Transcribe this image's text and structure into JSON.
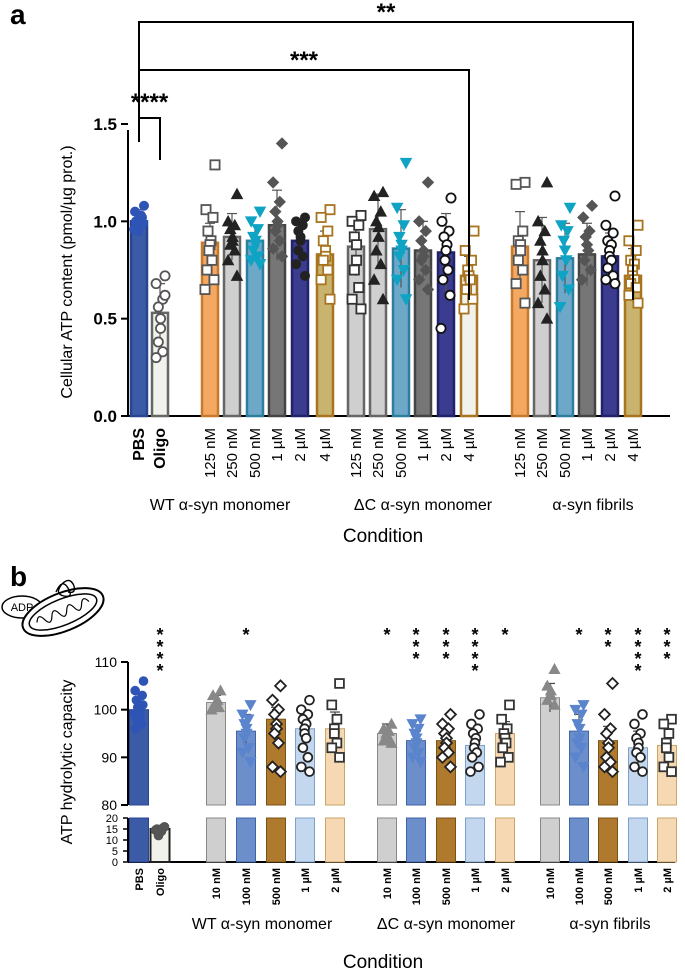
{
  "colors": {
    "pbs": "#3B5BA7",
    "oligo": "#F2F2EC",
    "orange": "#F5A862",
    "lightgray": "#CFCFCF",
    "teal": "#6EA8C9",
    "darkgray": "#767676",
    "navy": "#3B3B8F",
    "olive": "#C8B46E",
    "brown": "#B07A2E",
    "midblue": "#6C8FCB",
    "paleblue": "#C3D7EE",
    "peach": "#F6D9B3",
    "cyanmarker": "#0FA3C4",
    "brownmarker": "#A8741F"
  },
  "panel_a": {
    "panel_label": "a",
    "xlabel": "Condition",
    "ylabel": "Cellular ATP content (pmol/µg prot.)",
    "ytick_labels": [
      "0.0",
      "0.5",
      "1.0",
      "1.5"
    ],
    "group_labels": [
      "WT α-syn monomer",
      "ΔC α-syn monomer",
      "α-syn fibrils"
    ],
    "brackets": [
      {
        "from": "PBS",
        "to": "Oligo",
        "label": "****"
      },
      {
        "from": "PBS",
        "to": "ΔC 4 µM",
        "label": "***"
      },
      {
        "from": "PBS",
        "to": "Fibrils 4 µM",
        "label": "**"
      }
    ]
  },
  "panel_b": {
    "panel_label": "b",
    "icon_text": "ADP",
    "xlabel": "Condition",
    "ylabel": "ATP hydrolytic capacity",
    "ytick_labels_upper": [
      "80",
      "90",
      "100",
      "110"
    ],
    "ytick_labels_lower": [
      "0",
      "5",
      "10",
      "15",
      "20"
    ],
    "group_labels": [
      "WT α-syn monomer",
      "ΔC α-syn monomer",
      "α-syn fibrils"
    ]
  },
  "chart_data": [
    {
      "type": "bar",
      "title": "",
      "xlabel": "Condition",
      "ylabel": "Cellular ATP content (pmol/µg prot.)",
      "ylim": [
        0,
        1.5
      ],
      "categories": [
        "PBS",
        "Oligo",
        "125 nM",
        "250 nM",
        "500 nM",
        "1 µM",
        "2 µM",
        "4 µM",
        "125 nM",
        "250 nM",
        "500 nM",
        "1 µM",
        "2 µM",
        "4 µM",
        "125 nM",
        "250 nM",
        "500 nM",
        "1 µM",
        "2 µM",
        "4 µM"
      ],
      "groups": [
        "",
        "",
        "WT α-syn monomer",
        "WT α-syn monomer",
        "WT α-syn monomer",
        "WT α-syn monomer",
        "WT α-syn monomer",
        "WT α-syn monomer",
        "ΔC α-syn monomer",
        "ΔC α-syn monomer",
        "ΔC α-syn monomer",
        "ΔC α-syn monomer",
        "ΔC α-syn monomer",
        "ΔC α-syn monomer",
        "α-syn fibrils",
        "α-syn fibrils",
        "α-syn fibrils",
        "α-syn fibrils",
        "α-syn fibrils",
        "α-syn fibrils"
      ],
      "values": [
        1.0,
        0.53,
        0.89,
        0.92,
        0.9,
        0.98,
        0.9,
        0.83,
        0.87,
        0.96,
        0.86,
        0.85,
        0.84,
        0.72,
        0.87,
        0.8,
        0.81,
        0.83,
        0.82,
        0.72
      ],
      "errors": [
        0.06,
        0.15,
        0.1,
        0.12,
        0.08,
        0.18,
        0.1,
        0.12,
        0.15,
        0.18,
        0.2,
        0.15,
        0.2,
        0.1,
        0.18,
        0.22,
        0.18,
        0.16,
        0.12,
        0.14
      ],
      "fills": [
        "pbs",
        "oligo",
        "orange",
        "lightgray",
        "teal",
        "darkgray",
        "navy",
        "olive",
        "lightgray",
        "lightgray",
        "teal",
        "darkgray",
        "navy",
        "oligo",
        "orange",
        "lightgray",
        "teal",
        "darkgray",
        "navy",
        "olive"
      ],
      "outlines": [
        "#2A4590",
        "#666666",
        "#C77A2E",
        "#666666",
        "#2D7E9E",
        "#444444",
        "#22226A",
        "#A8741F",
        "#666666",
        "#666666",
        "#2D7E9E",
        "#444444",
        "#22226A",
        "#A8741F",
        "#C77A2E",
        "#666666",
        "#2D7E9E",
        "#444444",
        "#22226A",
        "#A8741F"
      ],
      "markers": [
        "filled-circle",
        "open-circle",
        "open-square",
        "filled-triangle",
        "filled-down-triangle",
        "filled-diamond",
        "filled-circle",
        "open-square",
        "open-square",
        "filled-triangle",
        "filled-down-triangle",
        "filled-diamond",
        "open-circle",
        "open-square",
        "open-square",
        "filled-triangle",
        "filled-down-triangle",
        "filled-diamond",
        "open-circle",
        "open-square"
      ],
      "marker_colors": [
        "#2E55B5",
        "#555555",
        "#555555",
        "#222222",
        "cyanmarker",
        "#555555",
        "#222222",
        "brownmarker",
        "#333333",
        "#222222",
        "cyanmarker",
        "#555555",
        "#111111",
        "brownmarker",
        "#555555",
        "#222222",
        "cyanmarker",
        "#555555",
        "#111111",
        "brownmarker"
      ],
      "points": [
        [
          1.08,
          1.05,
          1.02,
          1.0,
          0.98,
          0.97,
          0.95,
          1.03,
          1.0,
          0.99,
          0.96
        ],
        [
          0.72,
          0.68,
          0.6,
          0.56,
          0.5,
          0.45,
          0.38,
          0.33,
          0.3,
          0.62
        ],
        [
          1.29,
          1.06,
          1.02,
          0.95,
          0.9,
          0.88,
          0.85,
          0.8,
          0.75,
          0.7,
          0.65
        ],
        [
          1.14,
          1.0,
          0.98,
          0.96,
          0.92,
          0.9,
          0.88,
          0.85,
          0.8,
          0.72
        ],
        [
          1.05,
          1.0,
          0.96,
          0.92,
          0.9,
          0.88,
          0.85,
          0.82,
          0.8,
          0.78
        ],
        [
          1.4,
          1.2,
          1.1,
          1.05,
          1.0,
          0.98,
          0.95,
          0.9,
          0.86,
          0.82
        ],
        [
          1.02,
          1.0,
          0.98,
          0.95,
          0.92,
          0.9,
          0.85,
          0.82,
          0.78,
          0.72
        ],
        [
          1.06,
          1.02,
          0.95,
          0.9,
          0.85,
          0.82,
          0.8,
          0.75,
          0.7,
          0.6
        ],
        [
          1.03,
          1.0,
          0.98,
          0.92,
          0.88,
          0.8,
          0.75,
          0.66,
          0.6,
          0.55
        ],
        [
          1.15,
          1.13,
          1.05,
          1.0,
          0.97,
          0.92,
          0.85,
          0.78,
          0.7,
          0.6
        ],
        [
          1.3,
          1.07,
          0.98,
          0.92,
          0.88,
          0.85,
          0.82,
          0.75,
          0.7,
          0.6
        ],
        [
          1.2,
          1.0,
          0.95,
          0.9,
          0.85,
          0.82,
          0.8,
          0.75,
          0.7,
          0.65
        ],
        [
          1.12,
          1.0,
          0.95,
          0.92,
          0.88,
          0.85,
          0.8,
          0.75,
          0.7,
          0.62,
          0.45
        ],
        [
          0.95,
          0.85,
          0.8,
          0.75,
          0.72,
          0.7,
          0.65,
          0.6,
          0.55
        ],
        [
          1.2,
          1.19,
          0.95,
          0.9,
          0.88,
          0.85,
          0.8,
          0.75,
          0.68,
          0.58
        ],
        [
          1.2,
          1.0,
          0.95,
          0.9,
          0.85,
          0.8,
          0.72,
          0.65,
          0.58,
          0.5
        ],
        [
          1.07,
          0.98,
          0.95,
          0.9,
          0.85,
          0.8,
          0.72,
          0.65,
          0.56
        ],
        [
          1.08,
          1.02,
          0.95,
          0.92,
          0.88,
          0.85,
          0.8,
          0.75,
          0.7
        ],
        [
          1.13,
          0.98,
          0.94,
          0.9,
          0.88,
          0.85,
          0.82,
          0.8,
          0.76,
          0.72,
          0.7,
          0.68
        ],
        [
          0.98,
          0.9,
          0.85,
          0.8,
          0.78,
          0.75,
          0.72,
          0.7,
          0.68,
          0.66,
          0.62,
          0.58
        ]
      ]
    },
    {
      "type": "bar",
      "title": "",
      "xlabel": "Condition",
      "ylabel": "ATP hydrolytic capacity",
      "ylim_upper": [
        80,
        110
      ],
      "ylim_lower": [
        0,
        20
      ],
      "categories": [
        "PBS",
        "Oligo",
        "10 nM",
        "100 nM",
        "500 nM",
        "1 µM",
        "2 µM",
        "10 nM",
        "100 nM",
        "500 nM",
        "1 µM",
        "2 µM",
        "10 nM",
        "100 nM",
        "500 nM",
        "1 µM",
        "2 µM"
      ],
      "groups": [
        "",
        "",
        "WT α-syn monomer",
        "WT α-syn monomer",
        "WT α-syn monomer",
        "WT α-syn monomer",
        "WT α-syn monomer",
        "ΔC α-syn monomer",
        "ΔC α-syn monomer",
        "ΔC α-syn monomer",
        "ΔC α-syn monomer",
        "ΔC α-syn monomer",
        "α-syn fibrils",
        "α-syn fibrils",
        "α-syn fibrils",
        "α-syn fibrils",
        "α-syn fibrils"
      ],
      "values": [
        100,
        15,
        101.5,
        95.5,
        98,
        96,
        96,
        95,
        93.5,
        93.5,
        92.5,
        95,
        102.5,
        95.5,
        93.5,
        92,
        92.5
      ],
      "errors": [
        1.5,
        1.5,
        1.5,
        3.5,
        2.5,
        3.5,
        3.5,
        2.0,
        2.0,
        2.5,
        3.0,
        2.5,
        3.0,
        3.5,
        3.0,
        3.5,
        3.5
      ],
      "significance": [
        "",
        "****",
        "",
        "*",
        "",
        "",
        "",
        "*",
        "***",
        "***",
        "****",
        "*",
        "",
        "*",
        "**",
        "****",
        "***"
      ],
      "fills": [
        "pbs",
        "oligo",
        "lightgray",
        "midblue",
        "brown",
        "paleblue",
        "peach",
        "lightgray",
        "midblue",
        "brown",
        "paleblue",
        "peach",
        "lightgray",
        "midblue",
        "brown",
        "paleblue",
        "peach"
      ],
      "outlines": [
        "#2A4590",
        "#222222",
        "#888888",
        "#3F63A8",
        "#7A5218",
        "#7F9FC8",
        "#C9A56A",
        "#888888",
        "#3F63A8",
        "#7A5218",
        "#7F9FC8",
        "#C9A56A",
        "#888888",
        "#3F63A8",
        "#7A5218",
        "#7F9FC8",
        "#C9A56A"
      ],
      "markers": [
        "filled-circle",
        "filled-circle",
        "filled-triangle",
        "filled-down-triangle",
        "open-diamond",
        "open-circle",
        "open-square",
        "filled-triangle",
        "filled-down-triangle",
        "open-diamond",
        "open-circle",
        "open-square",
        "filled-triangle",
        "filled-down-triangle",
        "open-diamond",
        "open-circle",
        "open-square"
      ],
      "marker_colors": [
        "#2E55B5",
        "#555555",
        "#888888",
        "#5A84CC",
        "#222222",
        "#222222",
        "#333333",
        "#888888",
        "#5A84CC",
        "#222222",
        "#222222",
        "#333333",
        "#888888",
        "#5A84CC",
        "#222222",
        "#222222",
        "#333333"
      ],
      "points": [
        [
          106,
          104,
          103,
          102,
          101,
          100.5,
          100,
          99.5,
          99,
          98.5,
          98,
          97,
          96,
          101,
          99
        ],
        [
          16,
          15,
          14,
          13.5,
          12,
          15.5,
          14.5
        ],
        [
          104,
          103,
          102,
          101.5,
          101,
          100.5,
          100
        ],
        [
          101,
          99,
          98,
          97,
          96,
          95,
          94,
          92,
          91,
          89
        ],
        [
          105,
          102,
          100,
          99,
          97,
          96,
          95,
          93,
          88,
          87
        ],
        [
          102,
          100,
          99,
          98,
          97,
          96,
          95,
          94,
          92,
          90,
          88,
          87
        ],
        [
          105.5,
          101,
          98,
          96,
          95,
          93,
          92,
          90
        ],
        [
          97,
          96,
          95.5,
          95,
          94.5,
          94,
          93.5,
          93
        ],
        [
          98,
          97,
          96,
          95,
          94,
          93,
          92,
          91,
          90,
          89
        ],
        [
          99,
          97,
          96,
          95,
          94,
          93,
          92,
          91,
          90,
          88
        ],
        [
          99,
          97,
          96,
          95,
          94,
          93,
          92,
          91,
          90,
          88,
          87
        ],
        [
          101,
          98,
          96,
          95,
          94,
          93,
          92,
          90,
          89
        ],
        [
          108.5,
          105,
          104,
          103,
          102,
          101
        ],
        [
          101,
          100,
          99,
          97,
          96,
          94,
          93,
          92,
          90,
          88
        ],
        [
          105.5,
          99,
          96,
          95,
          93,
          92,
          90,
          89,
          88,
          87
        ],
        [
          99,
          97,
          95,
          94,
          93,
          92,
          91,
          90,
          88,
          87
        ],
        [
          98,
          97,
          95,
          93,
          92,
          90,
          88,
          87
        ]
      ]
    }
  ]
}
